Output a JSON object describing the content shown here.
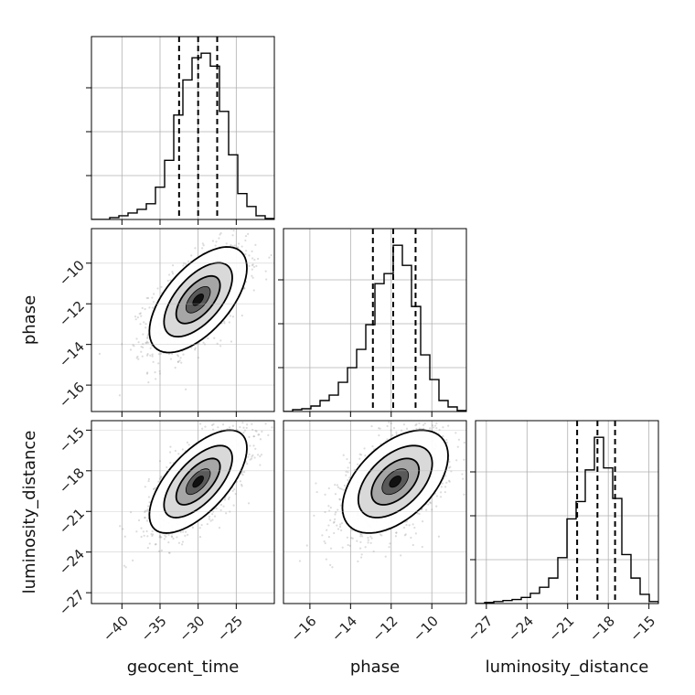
{
  "chart_data": {
    "type": "corner",
    "parameters": [
      "geocent_time",
      "phase",
      "luminosity_distance"
    ],
    "axis_labels": {
      "x": [
        "geocent_time",
        "phase",
        "luminosity_distance"
      ],
      "y": [
        "",
        "phase",
        "luminosity_distance"
      ]
    },
    "ranges": {
      "geocent_time": [
        -44,
        -20
      ],
      "phase": [
        -17.3,
        -8.3
      ],
      "luminosity_distance": [
        -27.8,
        -14.3
      ]
    },
    "ticks": {
      "geocent_time": [
        -40,
        -35,
        -30,
        -25
      ],
      "phase": [
        -16,
        -14,
        -12,
        -10
      ],
      "luminosity_distance": [
        -27,
        -24,
        -21,
        -18,
        -15
      ]
    },
    "tick_labels": {
      "geocent_time": [
        "−40",
        "−35",
        "−30",
        "−25"
      ],
      "phase": [
        "−16",
        "−14",
        "−12",
        "−10"
      ],
      "luminosity_distance": [
        "−27",
        "−24",
        "−21",
        "−18",
        "−15"
      ]
    },
    "grid": true,
    "quantiles": {
      "geocent_time": [
        -32.5,
        -30.0,
        -27.5
      ],
      "phase": [
        -12.9,
        -11.9,
        -10.8
      ],
      "luminosity_distance": [
        -20.3,
        -18.8,
        -17.5
      ]
    },
    "histograms": {
      "geocent_time": {
        "edges": [
          -44,
          -42.8,
          -41.6,
          -40.4,
          -39.2,
          -38.0,
          -36.8,
          -35.6,
          -34.4,
          -33.2,
          -32.0,
          -30.8,
          -29.6,
          -28.4,
          -27.2,
          -26.0,
          -24.8,
          -23.6,
          -22.4,
          -21.2,
          -20.0
        ],
        "counts": [
          0,
          0,
          2,
          4,
          7,
          11,
          17,
          35,
          64,
          113,
          151,
          175,
          180,
          166,
          117,
          70,
          28,
          14,
          4,
          1
        ]
      },
      "phase": {
        "edges": [
          -17.3,
          -16.85,
          -16.4,
          -15.95,
          -15.5,
          -15.05,
          -14.6,
          -14.15,
          -13.7,
          -13.25,
          -12.8,
          -12.35,
          -11.9,
          -11.45,
          -11.0,
          -10.55,
          -10.1,
          -9.65,
          -9.2,
          -8.75,
          -8.3
        ],
        "counts": [
          0,
          2,
          3,
          6,
          12,
          18,
          32,
          48,
          68,
          95,
          140,
          151,
          182,
          160,
          115,
          62,
          35,
          12,
          5,
          1
        ]
      },
      "luminosity_distance": {
        "edges": [
          -27.8,
          -27.125,
          -26.45,
          -25.775,
          -25.1,
          -24.425,
          -23.75,
          -23.075,
          -22.4,
          -21.725,
          -21.05,
          -20.375,
          -19.7,
          -19.025,
          -18.35,
          -17.675,
          -17.0,
          -16.325,
          -15.65,
          -14.975,
          -14.3
        ],
        "counts": [
          0,
          1,
          2,
          3,
          4,
          6,
          10,
          16,
          25,
          45,
          83,
          100,
          131,
          163,
          133,
          103,
          48,
          25,
          9,
          2
        ]
      }
    },
    "correlations": {
      "phase|geocent_time": {
        "mean": [
          -30.0,
          -11.8
        ],
        "sd": [
          3.2,
          1.3
        ],
        "rho": 0.6
      },
      "luminosity_distance|geocent_time": {
        "mean": [
          -30.0,
          -18.8
        ],
        "sd": [
          3.2,
          1.9
        ],
        "rho": 0.65
      },
      "luminosity_distance|phase": {
        "mean": [
          -11.8,
          -18.8
        ],
        "sd": [
          1.3,
          1.9
        ],
        "rho": 0.5
      }
    },
    "colors": {
      "line": "#000000",
      "points": "#808080",
      "grid": "#b0b0b0",
      "frame": "#000000"
    }
  }
}
